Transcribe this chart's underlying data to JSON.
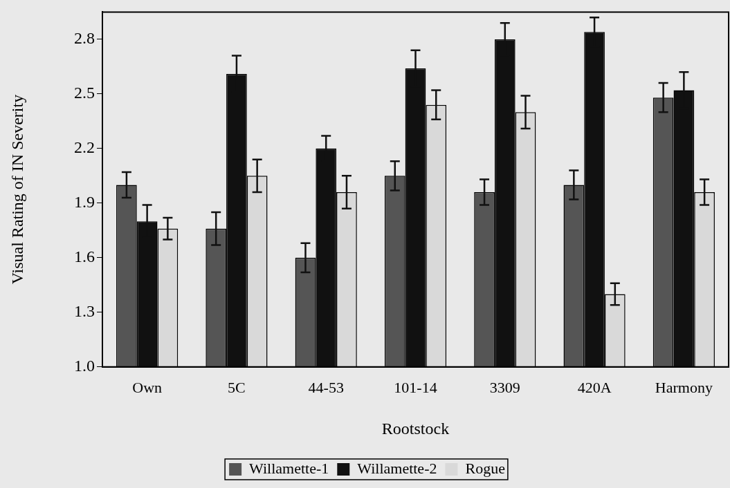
{
  "chart_data": {
    "type": "bar",
    "xlabel": "Rootstock",
    "ylabel": "Visual Rating of IN Severity",
    "categories": [
      "Own",
      "5C",
      "44-53",
      "101-14",
      "3309",
      "420A",
      "Harmony"
    ],
    "series": [
      {
        "name": "Willamette-1",
        "color": "#555555",
        "values": [
          2.0,
          1.76,
          1.6,
          2.05,
          1.96,
          2.0,
          2.48
        ],
        "errors": [
          0.07,
          0.09,
          0.08,
          0.08,
          0.07,
          0.08,
          0.08
        ]
      },
      {
        "name": "Willamette-2",
        "color": "#111111",
        "values": [
          1.8,
          2.61,
          2.2,
          2.64,
          2.8,
          2.84,
          2.52
        ],
        "errors": [
          0.09,
          0.1,
          0.07,
          0.1,
          0.09,
          0.08,
          0.1
        ]
      },
      {
        "name": "Rogue",
        "color": "#d9d9d9",
        "values": [
          1.76,
          2.05,
          1.96,
          2.44,
          2.4,
          1.4,
          1.96
        ],
        "errors": [
          0.06,
          0.09,
          0.09,
          0.08,
          0.09,
          0.06,
          0.07
        ]
      }
    ],
    "ylim": [
      1.0,
      2.95
    ],
    "yticks": [
      {
        "value": 1.0,
        "label": "1.0"
      },
      {
        "value": 1.3,
        "label": "1.3"
      },
      {
        "value": 1.6,
        "label": "1.6"
      },
      {
        "value": 1.9,
        "label": "1.9"
      },
      {
        "value": 2.2,
        "label": "2.2"
      },
      {
        "value": 2.5,
        "label": "2.5"
      },
      {
        "value": 2.8,
        "label": "2.8"
      }
    ],
    "grid": false,
    "legend": "bottom"
  }
}
